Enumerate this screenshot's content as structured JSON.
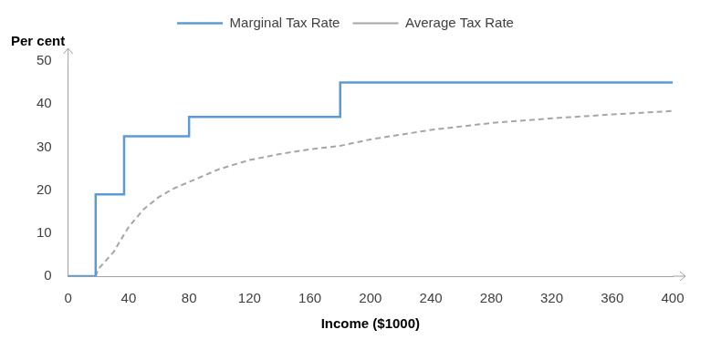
{
  "chart_data": {
    "type": "line",
    "x_label": "Income ($1000)",
    "y_label": "Per cent",
    "xlim": [
      0,
      400
    ],
    "xticks": [
      0,
      40,
      80,
      120,
      160,
      200,
      240,
      280,
      320,
      360,
      400
    ],
    "ylim": [
      0,
      50
    ],
    "yticks": [
      0,
      10,
      20,
      30,
      40,
      50
    ],
    "grid": false,
    "legend": "top",
    "series": [
      {
        "name": "Marginal Tax Rate",
        "color": "#5b9bd5",
        "line_style": "solid",
        "x": [
          0,
          18.2,
          18.2,
          37,
          37,
          80,
          80,
          180,
          180,
          400
        ],
        "values": [
          0,
          0,
          19,
          19,
          32.5,
          32.5,
          37,
          37,
          45,
          45
        ]
      },
      {
        "name": "Average Tax Rate",
        "color": "#a6a6a6",
        "line_style": "dashed",
        "x": [
          0,
          18.2,
          20,
          30,
          37,
          40,
          50,
          60,
          70,
          80,
          100,
          120,
          140,
          160,
          180,
          200,
          240,
          280,
          320,
          360,
          400
        ],
        "values": [
          0,
          0,
          1.7,
          5.6,
          9.7,
          11.4,
          15.6,
          18.4,
          20.4,
          21.9,
          24.9,
          27.0,
          28.4,
          29.5,
          30.3,
          31.8,
          34.0,
          35.6,
          36.7,
          37.6,
          38.4
        ]
      }
    ]
  }
}
